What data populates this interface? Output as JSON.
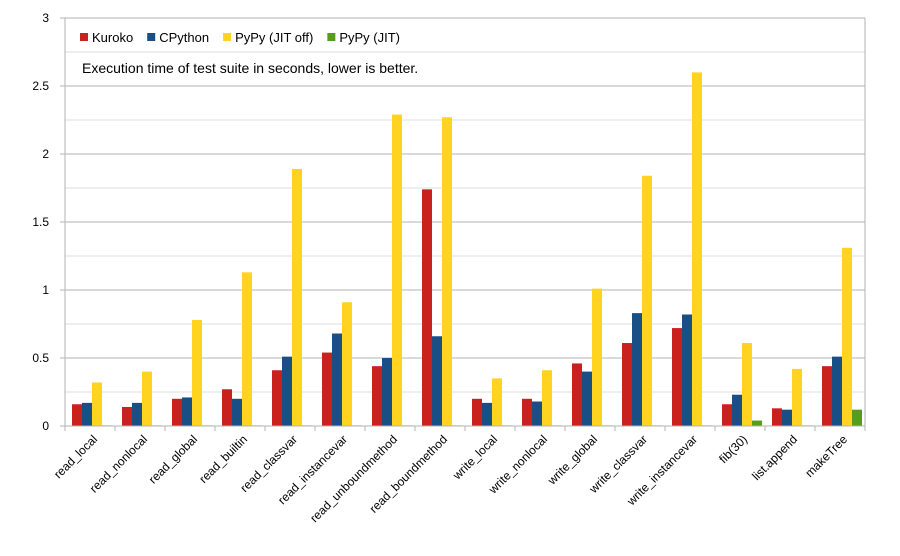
{
  "chart_data": {
    "type": "bar",
    "title": "",
    "xlabel": "",
    "ylabel": "",
    "annotation": "Execution time of test suite in seconds, lower is better.",
    "ylim": [
      0,
      3
    ],
    "yticks": [
      0,
      0.5,
      1,
      1.5,
      2,
      2.5,
      3
    ],
    "ytick_labels": [
      "0",
      "0.5",
      "1",
      "1.5",
      "2",
      "2.5",
      "3"
    ],
    "grid": true,
    "legend_position": "top-left",
    "categories": [
      "read_local",
      "read_nonlocal",
      "read_global",
      "read_builtin",
      "read_classvar",
      "read_instancevar",
      "read_unboundmethod",
      "read_boundmethod",
      "write_local",
      "write_nonlocal",
      "write_global",
      "write_classvar",
      "write_instancevar",
      "fib(30)",
      "list.append",
      "makeTree"
    ],
    "series": [
      {
        "name": "Kuroko",
        "color": "#c9211e",
        "values": [
          0.16,
          0.14,
          0.2,
          0.27,
          0.41,
          0.54,
          0.44,
          1.74,
          0.2,
          0.2,
          0.46,
          0.61,
          0.72,
          0.16,
          0.13,
          0.44
        ]
      },
      {
        "name": "CPython",
        "color": "#1a4f86",
        "values": [
          0.17,
          0.17,
          0.21,
          0.2,
          0.51,
          0.68,
          0.5,
          0.66,
          0.17,
          0.18,
          0.4,
          0.83,
          0.82,
          0.23,
          0.12,
          0.51
        ]
      },
      {
        "name": "PyPy (JIT off)",
        "color": "#ffd320",
        "values": [
          0.32,
          0.4,
          0.78,
          1.13,
          1.89,
          0.91,
          2.29,
          2.27,
          0.35,
          0.41,
          1.01,
          1.84,
          2.6,
          0.61,
          0.42,
          1.31
        ]
      },
      {
        "name": "PyPy (JIT)",
        "color": "#579d1c",
        "values": [
          0.003,
          0.003,
          0.003,
          0.003,
          0.003,
          0.003,
          0.003,
          0.003,
          0.003,
          0.003,
          0.003,
          0.003,
          0.003,
          0.04,
          0.003,
          0.12
        ]
      }
    ]
  }
}
